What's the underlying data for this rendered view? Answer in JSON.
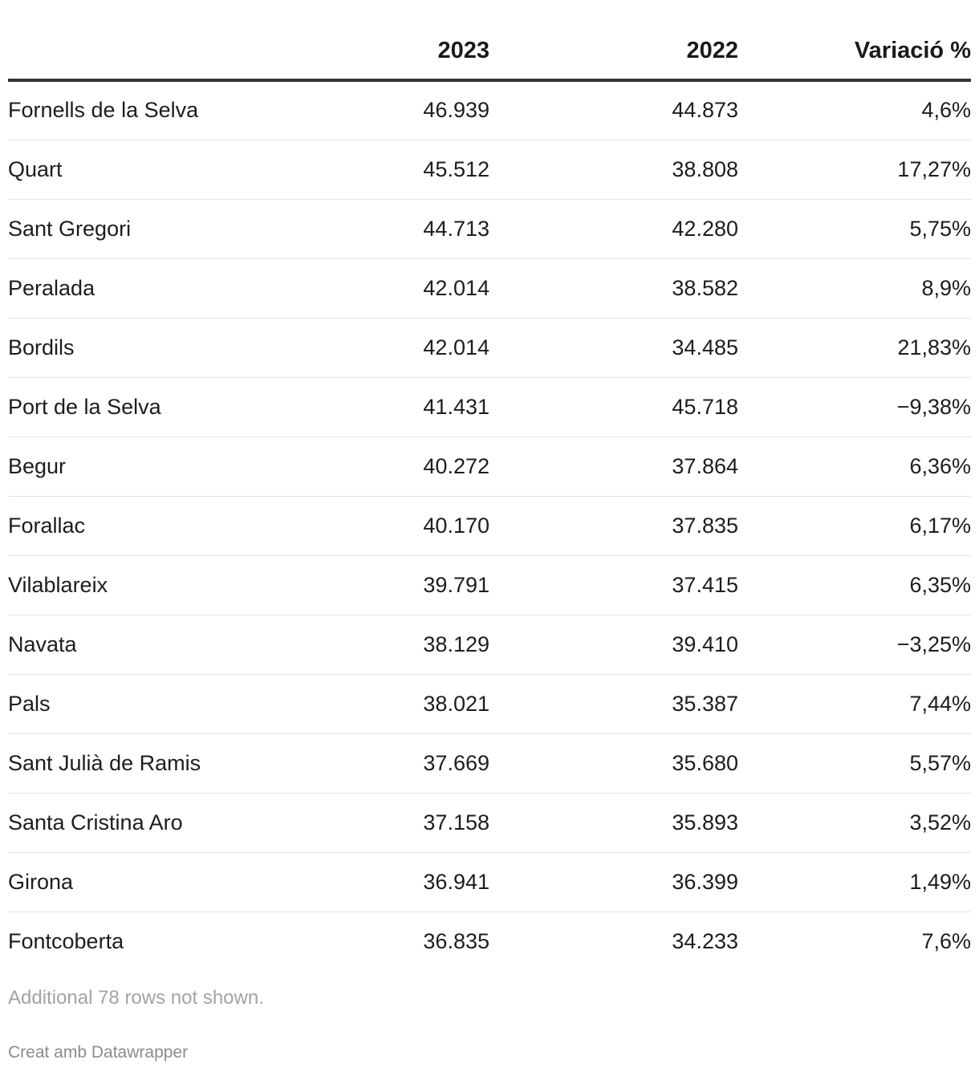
{
  "chart_data": {
    "type": "table",
    "columns": [
      "",
      "2023",
      "2022",
      "Variació %"
    ],
    "rows": [
      [
        "Fornells de la Selva",
        "46.939",
        "44.873",
        "4,6%"
      ],
      [
        "Quart",
        "45.512",
        "38.808",
        "17,27%"
      ],
      [
        "Sant Gregori",
        "44.713",
        "42.280",
        "5,75%"
      ],
      [
        "Peralada",
        "42.014",
        "38.582",
        "8,9%"
      ],
      [
        "Bordils",
        "42.014",
        "34.485",
        "21,83%"
      ],
      [
        "Port de la Selva",
        "41.431",
        "45.718",
        "−9,38%"
      ],
      [
        "Begur",
        "40.272",
        "37.864",
        "6,36%"
      ],
      [
        "Forallac",
        "40.170",
        "37.835",
        "6,17%"
      ],
      [
        "Vilablareix",
        "39.791",
        "37.415",
        "6,35%"
      ],
      [
        "Navata",
        "38.129",
        "39.410",
        "−3,25%"
      ],
      [
        "Pals",
        "38.021",
        "35.387",
        "7,44%"
      ],
      [
        "Sant Julià de Ramis",
        "37.669",
        "35.680",
        "5,57%"
      ],
      [
        "Santa Cristina Aro",
        "37.158",
        "35.893",
        "3,52%"
      ],
      [
        "Girona",
        "36.941",
        "36.399",
        "1,49%"
      ],
      [
        "Fontcoberta",
        "36.835",
        "34.233",
        "7,6%"
      ]
    ],
    "notes": "Additional 78 rows not shown.",
    "credit": "Creat amb Datawrapper"
  },
  "colors": {
    "text": "#1d1d1d",
    "header_rule": "#333333",
    "row_rule": "#e3e3e3",
    "notes": "#a3a3a3",
    "credit": "#8c8c8c"
  }
}
